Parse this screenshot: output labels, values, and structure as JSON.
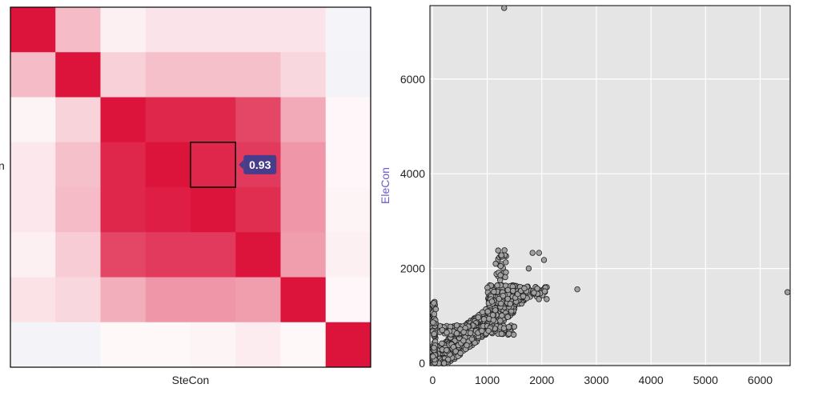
{
  "chart_data": [
    {
      "type": "heatmap",
      "grid": 8,
      "xlabel": "SteCon",
      "ylabel_partial": "n",
      "values": [
        [
          1.0,
          0.32,
          0.08,
          0.14,
          0.14,
          0.14,
          0.14,
          0.02
        ],
        [
          0.32,
          1.0,
          0.23,
          0.3,
          0.3,
          0.3,
          0.2,
          0.0
        ],
        [
          0.06,
          0.22,
          1.0,
          0.93,
          0.93,
          0.8,
          0.4,
          0.05
        ],
        [
          0.12,
          0.3,
          0.93,
          1.0,
          0.93,
          0.85,
          0.48,
          0.05
        ],
        [
          0.12,
          0.32,
          0.93,
          0.96,
          1.0,
          0.9,
          0.48,
          0.06
        ],
        [
          0.08,
          0.25,
          0.8,
          0.85,
          0.85,
          1.0,
          0.45,
          0.08
        ],
        [
          0.15,
          0.2,
          0.38,
          0.48,
          0.48,
          0.45,
          1.0,
          0.05
        ],
        [
          0.01,
          0.0,
          0.04,
          0.04,
          0.06,
          0.1,
          0.04,
          1.0
        ]
      ],
      "highlight": {
        "row": 3,
        "col": 4,
        "label": "0.93"
      },
      "colors": {
        "high": "#dc143c",
        "low": "#ffffff",
        "neg": "#e6e6f0",
        "tooltip": "#483d8b"
      }
    },
    {
      "type": "scatter",
      "xlabel": "",
      "ylabel": "EleCon",
      "xlim": [
        -50,
        6550
      ],
      "ylim": [
        -50,
        7550
      ],
      "xticks": [
        0,
        1000,
        2000,
        3000,
        4000,
        5000,
        6000
      ],
      "yticks": [
        0,
        2000,
        4000,
        6000
      ],
      "grid": true,
      "background": "#e5e5e5",
      "point_color": "#a0a0a0",
      "outliers": [
        [
          1310,
          7500
        ],
        [
          6500,
          1500
        ],
        [
          2650,
          1560
        ],
        [
          1830,
          2330
        ],
        [
          2040,
          2180
        ],
        [
          1200,
          2380
        ],
        [
          1260,
          2280
        ],
        [
          1680,
          1580
        ],
        [
          1950,
          2330
        ],
        [
          1760,
          2000
        ],
        [
          1340,
          2130
        ]
      ],
      "clusters": [
        {
          "x0": 0,
          "x1": 1500,
          "y0": 0,
          "y1": 1500,
          "n": 900,
          "slope": 0.9
        },
        {
          "x0": 1000,
          "x1": 1700,
          "y0": 1250,
          "y1": 1650,
          "n": 180,
          "slope": 0.0
        },
        {
          "x0": 50,
          "x1": 1500,
          "y0": 600,
          "y1": 800,
          "n": 120,
          "slope": 0.0
        },
        {
          "x0": 1500,
          "x1": 2100,
          "y0": 1350,
          "y1": 1620,
          "n": 45,
          "slope": 0.0
        },
        {
          "x0": 1150,
          "x1": 1350,
          "y0": 1750,
          "y1": 2400,
          "n": 25,
          "slope": 0.0
        },
        {
          "x0": 0,
          "x1": 60,
          "y0": 0,
          "y1": 1300,
          "n": 80,
          "slope": 0.0
        }
      ]
    }
  ]
}
